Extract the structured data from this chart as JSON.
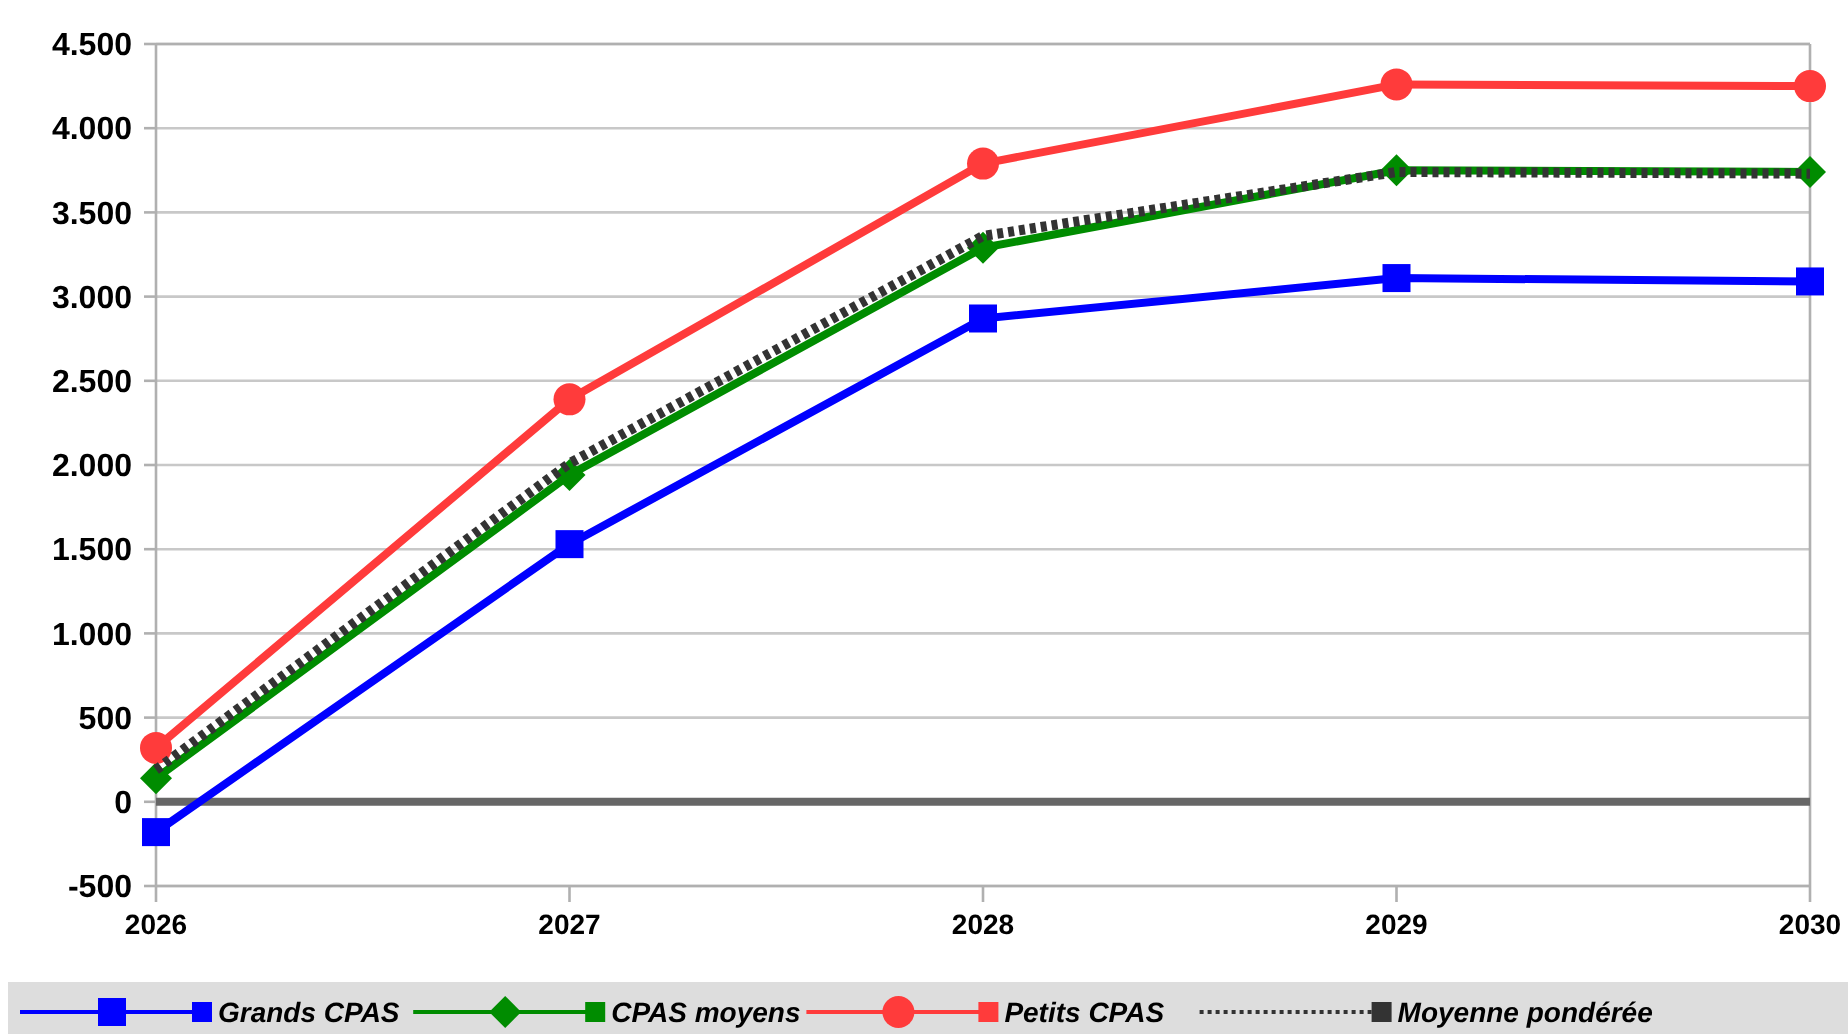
{
  "chart_data": {
    "type": "line",
    "x": [
      2026,
      2027,
      2028,
      2029,
      2030
    ],
    "xlim": [
      2026,
      2030
    ],
    "xticks": [
      2026,
      2027,
      2028,
      2029,
      2030
    ],
    "ylim": [
      -500,
      4500
    ],
    "yticks": [
      {
        "value": -500,
        "label": "-500"
      },
      {
        "value": 0,
        "label": "0"
      },
      {
        "value": 500,
        "label": "500"
      },
      {
        "value": 1000,
        "label": "1.000"
      },
      {
        "value": 1500,
        "label": "1.500"
      },
      {
        "value": 2000,
        "label": "2.000"
      },
      {
        "value": 2500,
        "label": "2.500"
      },
      {
        "value": 3000,
        "label": "3.000"
      },
      {
        "value": 3500,
        "label": "3.500"
      },
      {
        "value": 4000,
        "label": "4.000"
      },
      {
        "value": 4500,
        "label": "4.500"
      }
    ],
    "grid": "y",
    "legend": "bottom",
    "ref_lines": [
      {
        "axis": "y",
        "value": 0,
        "color": "#666666"
      }
    ],
    "series": [
      {
        "name": "Grands CPAS",
        "color": "#0000ff",
        "marker": "square",
        "values": [
          -180,
          1530,
          2870,
          3110,
          3090
        ]
      },
      {
        "name": "CPAS moyens",
        "color": "#008c00",
        "marker": "diamond",
        "values": [
          140,
          1940,
          3290,
          3750,
          3740
        ]
      },
      {
        "name": "Petits CPAS",
        "color": "#ff3b3b",
        "marker": "circle",
        "values": [
          320,
          2390,
          3790,
          4260,
          4250
        ]
      },
      {
        "name": "Moyenne pondérée",
        "color": "#333333",
        "marker": "none",
        "line_style": "dotted",
        "values": [
          190,
          2010,
          3360,
          3740,
          3730
        ]
      }
    ]
  }
}
